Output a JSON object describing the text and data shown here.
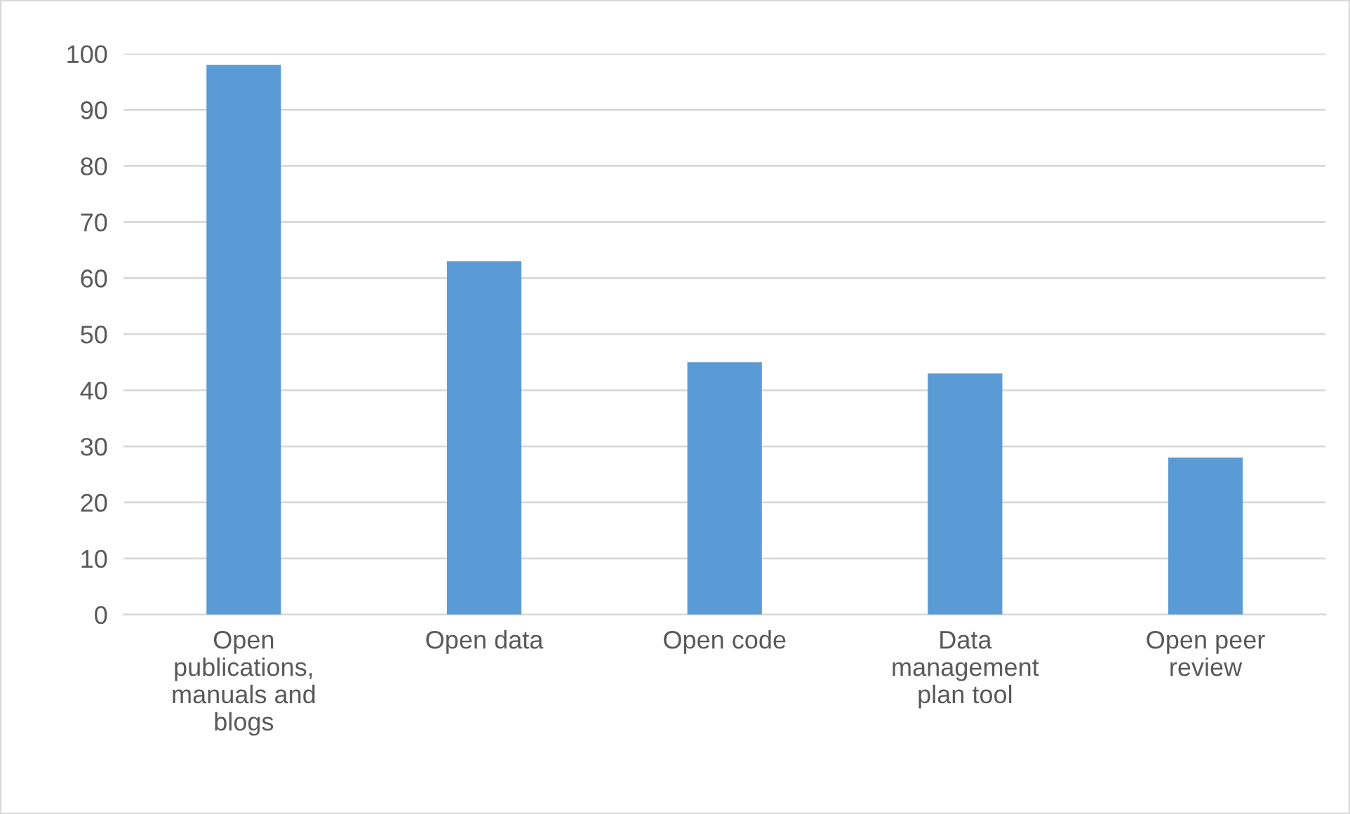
{
  "chart_data": {
    "type": "bar",
    "categories": [
      "Open\npublications,\nmanuals and\nblogs",
      "Open data",
      "Open code",
      "Data\nmanagement\nplan tool",
      "Open peer\nreview"
    ],
    "values": [
      98,
      63,
      45,
      43,
      28
    ],
    "color": "#5b9bd5",
    "ylim": [
      0,
      100
    ],
    "yticks": [
      0,
      10,
      20,
      30,
      40,
      50,
      60,
      70,
      80,
      90,
      100
    ],
    "grid": "y",
    "legend": false
  }
}
